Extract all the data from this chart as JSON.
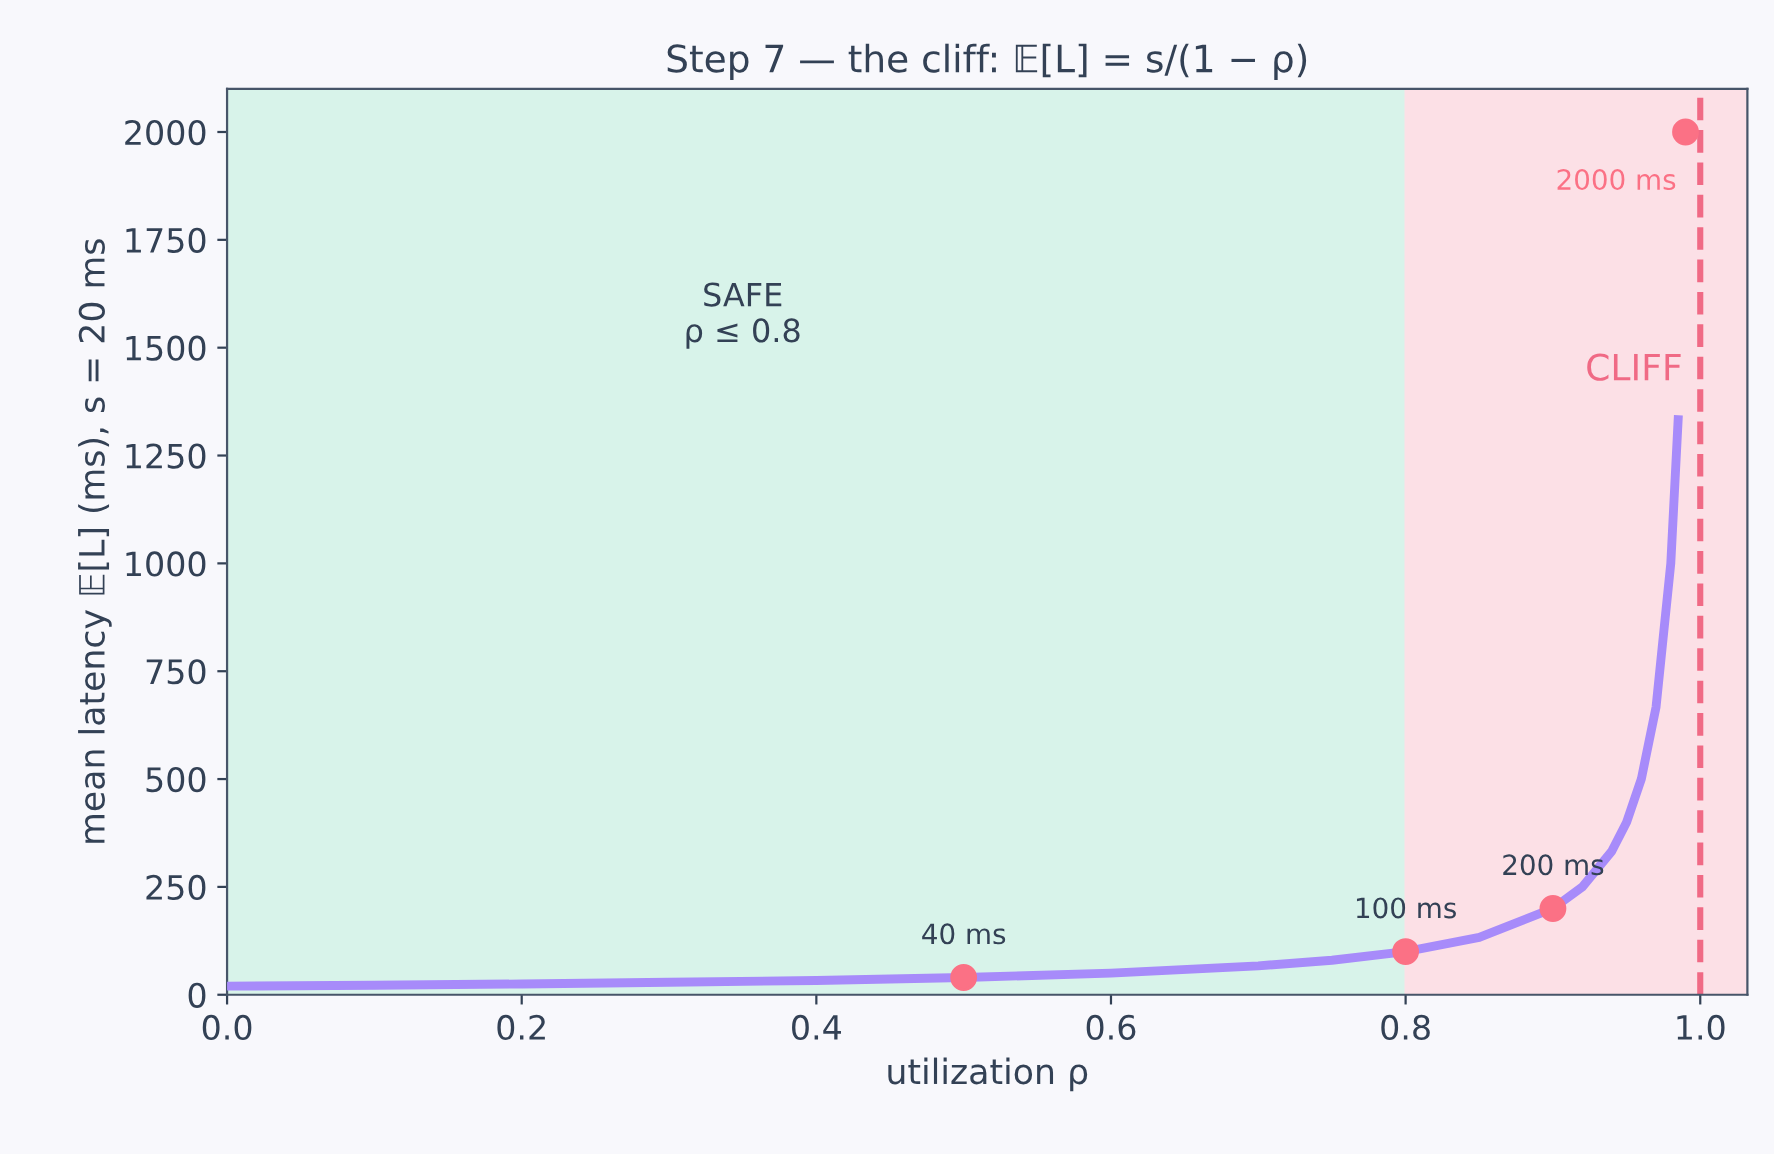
{
  "chart_data": {
    "type": "line",
    "title": "Step 7 — the cliff: 𝔼[L] = s/(1 − ρ)",
    "xlabel": "utilization ρ",
    "ylabel": "mean latency 𝔼[L] (ms), s = 20 ms",
    "series": [
      {
        "color": "#a78bfa",
        "x": [
          0,
          0.1,
          0.2,
          0.3,
          0.4,
          0.5,
          0.6,
          0.7,
          0.75,
          0.8,
          0.85,
          0.9,
          0.92,
          0.94,
          0.95,
          0.96,
          0.97,
          0.98,
          0.985
        ],
        "values": [
          20,
          22,
          25,
          29,
          33,
          40,
          50,
          67,
          80,
          100,
          133,
          200,
          250,
          333,
          400,
          500,
          667,
          1000,
          1333
        ]
      },
      {
        "type": "scatter",
        "marker": "circle",
        "color": "#fb7185",
        "x": [
          0.5,
          0.8,
          0.9,
          0.99
        ],
        "values": [
          40,
          100,
          200,
          2000
        ],
        "value_labels": [
          "40 ms",
          "100 ms",
          "200 ms",
          "2000 ms"
        ]
      }
    ],
    "bands": [
      {
        "axis": "x",
        "from": 0,
        "to": 0.8,
        "color": "#d8f3ea",
        "label": "SAFE\nρ ≤ 0.8"
      },
      {
        "axis": "x",
        "from": 0.8,
        "to": 1.032,
        "color": "#fce0e6"
      }
    ],
    "ref_lines": [
      {
        "axis": "x",
        "value": 1.0,
        "color": "#f06a85",
        "line_style": "dashed",
        "label": "CLIFF"
      }
    ],
    "xlim": [
      0,
      1.032
    ],
    "xticks": [
      {
        "value": 0,
        "label": "0.0"
      },
      0.2,
      0.4,
      0.6,
      0.8,
      {
        "value": 1,
        "label": "1.0"
      }
    ],
    "ylim": [
      0,
      2100
    ],
    "yticks": [
      0,
      250,
      500,
      750,
      1000,
      1250,
      1500,
      1750,
      2000
    ],
    "grid": false,
    "line_style": "solid"
  }
}
